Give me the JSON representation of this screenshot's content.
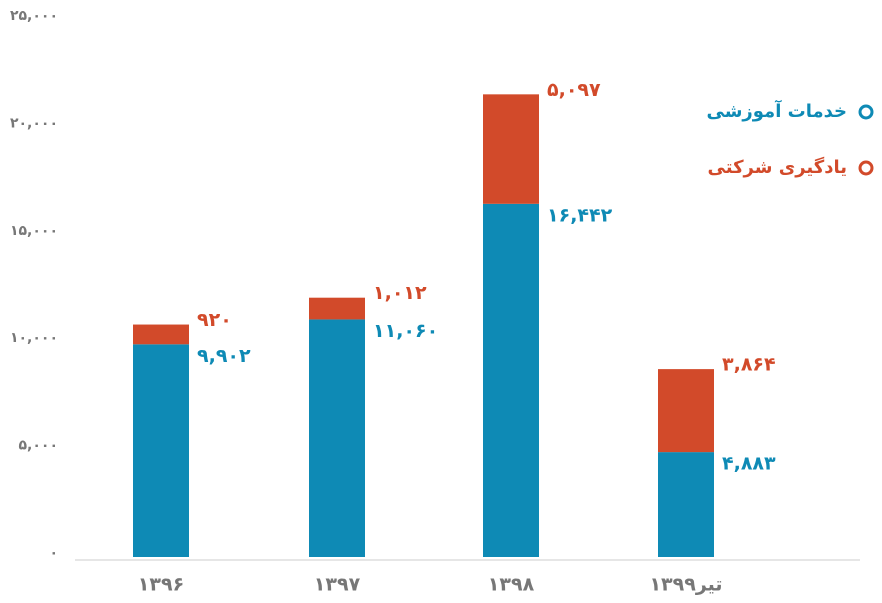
{
  "chart_data": {
    "type": "stacked_bar",
    "categories": [
      "۱۳۹۶",
      "۱۳۹۷",
      "۱۳۹۸",
      "تیر۱۳۹۹"
    ],
    "series": [
      {
        "name": "خدمات آموزشی",
        "color": "#0e8ab5",
        "values": [
          9902,
          11060,
          16442,
          4883
        ],
        "value_labels": [
          "۹,۹۰۲",
          "۱۱,۰۶۰",
          "۱۶,۴۴۲",
          "۴,۸۸۳"
        ]
      },
      {
        "name": "یادگیری شرکتی",
        "color": "#d24a2a",
        "values": [
          920,
          1012,
          5097,
          3864
        ],
        "value_labels": [
          "۹۲۰",
          "۱,۰۱۲",
          "۵,۰۹۷",
          "۳,۸۶۴"
        ]
      }
    ],
    "ylim": [
      0,
      25000
    ],
    "yticks": [
      {
        "value": 0,
        "label": "۰"
      },
      {
        "value": 5000,
        "label": "۵,۰۰۰"
      },
      {
        "value": 10000,
        "label": "۱۰,۰۰۰"
      },
      {
        "value": 15000,
        "label": "۱۵,۰۰۰"
      },
      {
        "value": 20000,
        "label": "۲۰,۰۰۰"
      },
      {
        "value": 25000,
        "label": "۲۵,۰۰۰"
      }
    ],
    "legend": "right"
  }
}
